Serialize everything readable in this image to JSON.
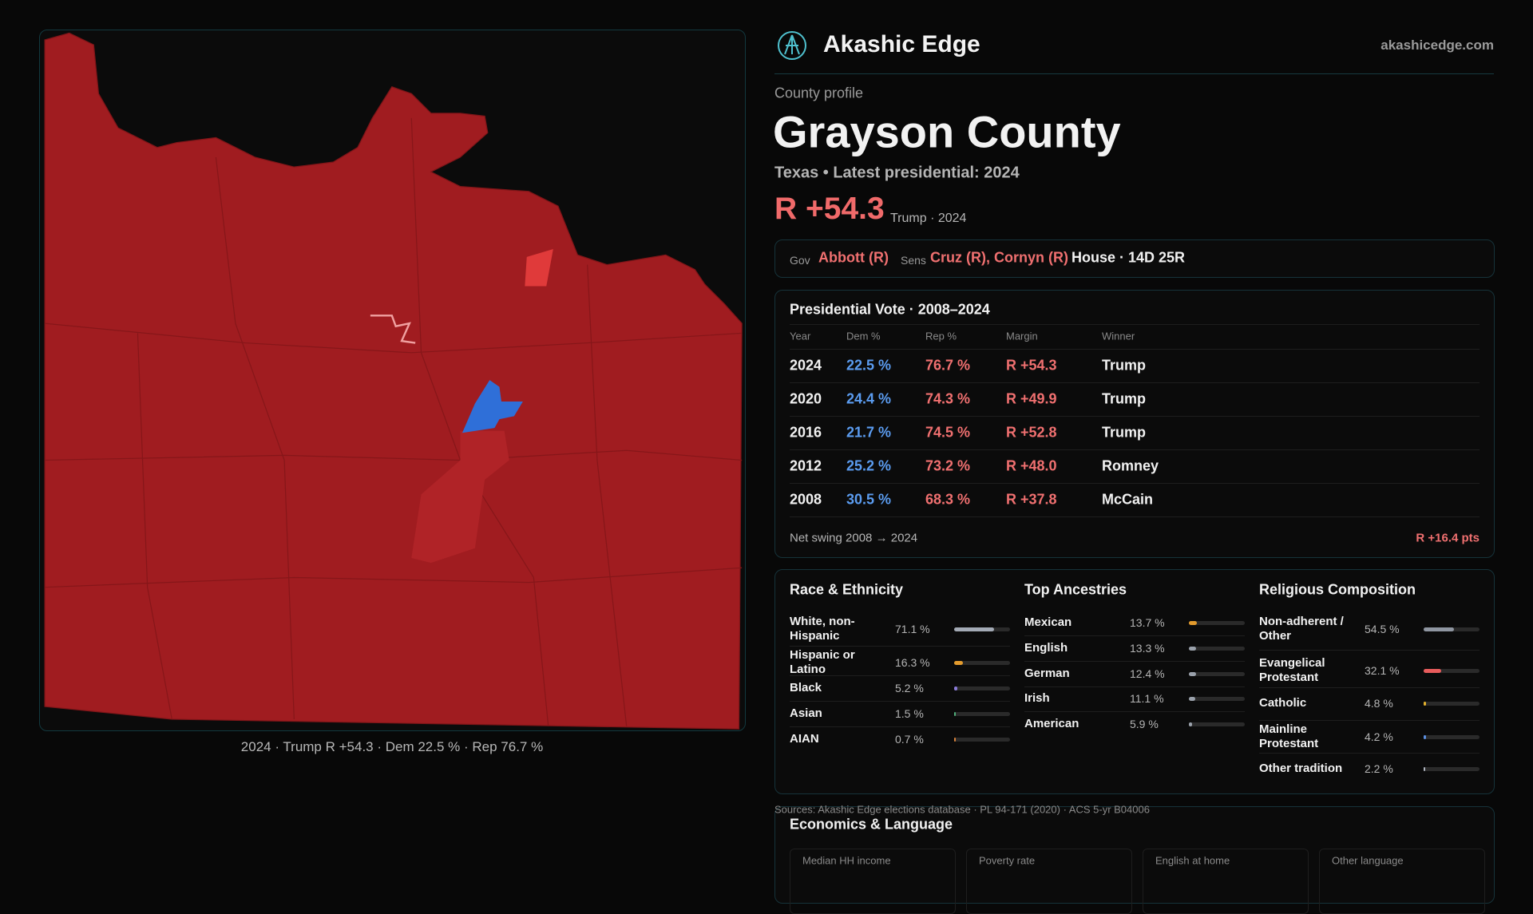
{
  "header": {
    "brand": "Akashic Edge",
    "site": "akashicedge.com"
  },
  "map": {
    "caption": "2024 · Trump R +54.3 · Dem 22.5 % · Rep 76.7 %"
  },
  "profile": {
    "eyebrow": "County profile",
    "title": "Grayson County",
    "subtitle": "Texas • Latest presidential: 2024",
    "margin": "R +54.3",
    "margin_note": "Trump · 2024"
  },
  "officials": {
    "gov_label": "Gov",
    "gov": "Abbott (R)",
    "sens_label": "Sens",
    "sens": "Cruz (R), Cornyn (R)",
    "house": "House · 14D 25R"
  },
  "presidential": {
    "title": "Presidential Vote · 2008–2024",
    "columns": [
      "Year",
      "Dem %",
      "Rep %",
      "Margin",
      "Winner"
    ],
    "rows": [
      [
        "2024",
        "22.5 %",
        "76.7 %",
        "R +54.3",
        "Trump"
      ],
      [
        "2020",
        "24.4 %",
        "74.3 %",
        "R +49.9",
        "Trump"
      ],
      [
        "2016",
        "21.7 %",
        "74.5 %",
        "R +52.8",
        "Trump"
      ],
      [
        "2012",
        "25.2 %",
        "73.2 %",
        "R +48.0",
        "Romney"
      ],
      [
        "2008",
        "30.5 %",
        "68.3 %",
        "R +37.8",
        "McCain"
      ]
    ],
    "footer_label": "Net swing 2008 → 2024",
    "footer_value": "R +16.4 pts"
  },
  "demographics": [
    {
      "title": "Race & Ethnicity",
      "items": [
        {
          "label": "White, non-Hispanic",
          "value": 71.1,
          "value_label": "71.1 %",
          "color": "#a3aab5"
        },
        {
          "label": "Hispanic or Latino",
          "value": 16.3,
          "value_label": "16.3 %",
          "color": "#e39b2d"
        },
        {
          "label": "Black",
          "value": 5.2,
          "value_label": "5.2 %",
          "color": "#8a7bd8"
        },
        {
          "label": "Asian",
          "value": 1.5,
          "value_label": "1.5 %",
          "color": "#4fae7a"
        },
        {
          "label": "AIAN",
          "value": 0.7,
          "value_label": "0.7 %",
          "color": "#d9823a"
        }
      ]
    },
    {
      "title": "Top Ancestries",
      "items": [
        {
          "label": "Mexican",
          "value": 13.7,
          "value_label": "13.7 %",
          "color": "#e39b2d"
        },
        {
          "label": "English",
          "value": 13.3,
          "value_label": "13.3 %",
          "color": "#9aa1ab"
        },
        {
          "label": "German",
          "value": 12.4,
          "value_label": "12.4 %",
          "color": "#9aa1ab"
        },
        {
          "label": "Irish",
          "value": 11.1,
          "value_label": "11.1 %",
          "color": "#9aa1ab"
        },
        {
          "label": "American",
          "value": 5.9,
          "value_label": "5.9 %",
          "color": "#9aa1ab"
        }
      ]
    },
    {
      "title": "Religious Composition",
      "items": [
        {
          "label": "Non-adherent / Other",
          "value": 54.5,
          "value_label": "54.5 %",
          "color": "#8f96a1"
        },
        {
          "label": "Evangelical Protestant",
          "value": 32.1,
          "value_label": "32.1 %",
          "color": "#e85c5c"
        },
        {
          "label": "Catholic",
          "value": 4.8,
          "value_label": "4.8 %",
          "color": "#e3b12d"
        },
        {
          "label": "Mainline Protestant",
          "value": 4.2,
          "value_label": "4.2 %",
          "color": "#5b8fe0"
        },
        {
          "label": "Other tradition",
          "value": 2.2,
          "value_label": "2.2 %",
          "color": "#b0b6c0"
        }
      ]
    }
  ],
  "sources": "Sources: Akashic Edge elections database · PL 94-171 (2020) · ACS 5-yr B04006",
  "economics": {
    "title": "Economics & Language",
    "columns": [
      "Median HH income",
      "Poverty rate",
      "English at home",
      "Other language"
    ]
  }
}
